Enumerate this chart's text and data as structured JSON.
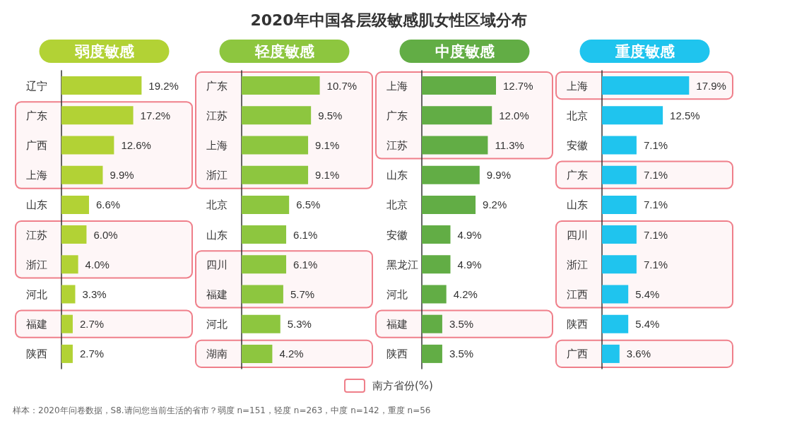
{
  "chart_data": [
    {
      "type": "bar",
      "orientation": "horizontal",
      "title": "弱度敏感",
      "annotations": [
        "2020年中国各层级敏感肌女性区域分布"
      ],
      "categories": [
        "辽宁",
        "广东",
        "广西",
        "上海",
        "山东",
        "江苏",
        "浙江",
        "河北",
        "福建",
        "陕西"
      ],
      "series": [
        {
          "color": "#b2d235",
          "values": [
            19.2,
            17.2,
            12.6,
            9.9,
            6.6,
            6.0,
            4.0,
            3.3,
            2.7,
            2.7
          ],
          "value_labels": [
            "19.2%",
            "17.2%",
            "12.6%",
            "9.9%",
            "6.6%",
            "6.0%",
            "4.0%",
            "3.3%",
            "2.7%",
            "2.7%"
          ]
        }
      ],
      "tick_labels": "y",
      "bands": [
        {
          "axis": "y",
          "from": "广东",
          "to": "上海",
          "color": "#ef7f8a"
        },
        {
          "axis": "y",
          "from": "江苏",
          "to": "浙江",
          "color": "#ef7f8a"
        },
        {
          "axis": "y",
          "from": "福建",
          "to": "福建",
          "color": "#ef7f8a"
        }
      ]
    },
    {
      "type": "bar",
      "orientation": "horizontal",
      "title": "轻度敏感",
      "categories": [
        "广东",
        "江苏",
        "上海",
        "浙江",
        "北京",
        "山东",
        "四川",
        "福建",
        "河北",
        "湖南"
      ],
      "series": [
        {
          "color": "#8dc63f",
          "values": [
            10.7,
            9.5,
            9.1,
            9.1,
            6.5,
            6.1,
            6.1,
            5.7,
            5.3,
            4.2
          ],
          "value_labels": [
            "10.7%",
            "9.5%",
            "9.1%",
            "9.1%",
            "6.5%",
            "6.1%",
            "6.1%",
            "5.7%",
            "5.3%",
            "4.2%"
          ]
        }
      ],
      "tick_labels": "y",
      "bands": [
        {
          "axis": "y",
          "from": "广东",
          "to": "浙江",
          "color": "#ef7f8a"
        },
        {
          "axis": "y",
          "from": "四川",
          "to": "福建",
          "color": "#ef7f8a"
        },
        {
          "axis": "y",
          "from": "湖南",
          "to": "湖南",
          "color": "#ef7f8a"
        }
      ]
    },
    {
      "type": "bar",
      "orientation": "horizontal",
      "title": "中度敏感",
      "categories": [
        "上海",
        "广东",
        "江苏",
        "山东",
        "北京",
        "安徽",
        "黑龙江",
        "河北",
        "福建",
        "陕西"
      ],
      "series": [
        {
          "color": "#62ad45",
          "values": [
            12.7,
            12.0,
            11.3,
            9.9,
            9.2,
            4.9,
            4.9,
            4.2,
            3.5,
            3.5
          ],
          "value_labels": [
            "12.7%",
            "12.0%",
            "11.3%",
            "9.9%",
            "9.2%",
            "4.9%",
            "4.9%",
            "4.2%",
            "3.5%",
            "3.5%"
          ]
        }
      ],
      "tick_labels": "y",
      "bands": [
        {
          "axis": "y",
          "from": "上海",
          "to": "江苏",
          "color": "#ef7f8a"
        },
        {
          "axis": "y",
          "from": "福建",
          "to": "福建",
          "color": "#ef7f8a"
        }
      ]
    },
    {
      "type": "bar",
      "orientation": "horizontal",
      "title": "重度敏感",
      "annotations": [
        "南方省份(%)",
        "样本：2020年问卷数据，S8.请问您当前生活的省市？弱度 n=151，轻度 n=263，中度 n=142，重度 n=56"
      ],
      "categories": [
        "上海",
        "北京",
        "安徽",
        "广东",
        "山东",
        "四川",
        "浙江",
        "江西",
        "陕西",
        "广西"
      ],
      "series": [
        {
          "color": "#1fc4ee",
          "values": [
            17.9,
            12.5,
            7.1,
            7.1,
            7.1,
            7.1,
            7.1,
            5.4,
            5.4,
            3.6
          ],
          "value_labels": [
            "17.9%",
            "12.5%",
            "7.1%",
            "7.1%",
            "7.1%",
            "7.1%",
            "7.1%",
            "5.4%",
            "5.4%",
            "3.6%"
          ]
        }
      ],
      "tick_labels": "y",
      "bands": [
        {
          "axis": "y",
          "from": "上海",
          "to": "上海",
          "color": "#ef7f8a"
        },
        {
          "axis": "y",
          "from": "广东",
          "to": "广东",
          "color": "#ef7f8a"
        },
        {
          "axis": "y",
          "from": "四川",
          "to": "江西",
          "color": "#ef7f8a"
        },
        {
          "axis": "y",
          "from": "广西",
          "to": "广西",
          "color": "#ef7f8a"
        }
      ]
    }
  ]
}
